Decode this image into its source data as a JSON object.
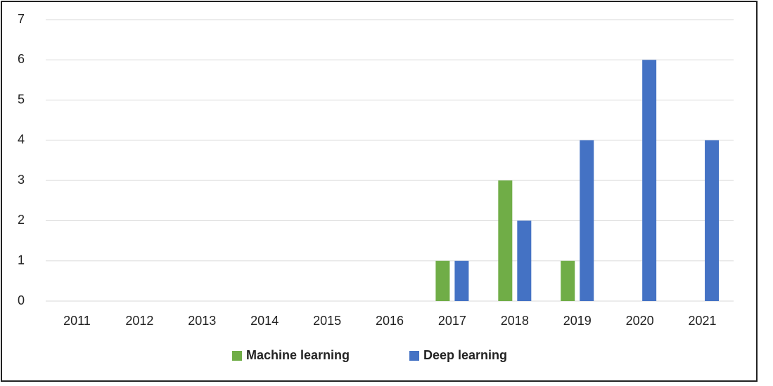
{
  "chart_data": {
    "type": "bar",
    "categories": [
      "2011",
      "2012",
      "2013",
      "2014",
      "2015",
      "2016",
      "2017",
      "2018",
      "2019",
      "2020",
      "2021"
    ],
    "series": [
      {
        "name": "Machine learning",
        "color": "#70ad47",
        "values": [
          0,
          0,
          0,
          0,
          0,
          0,
          1,
          3,
          1,
          0,
          0
        ]
      },
      {
        "name": "Deep learning",
        "color": "#4472c4",
        "values": [
          0,
          0,
          0,
          0,
          0,
          0,
          1,
          2,
          4,
          6,
          4
        ]
      }
    ],
    "ylim": [
      0,
      7
    ],
    "yticks": [
      0,
      1,
      2,
      3,
      4,
      5,
      6,
      7
    ],
    "grid": true,
    "legend": "bottom"
  }
}
